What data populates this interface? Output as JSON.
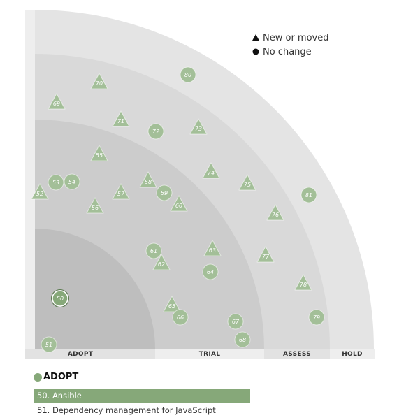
{
  "legend": {
    "new_label": "New or moved",
    "nochange_label": "No change"
  },
  "rings": [
    "ADOPT",
    "TRIAL",
    "ASSESS",
    "HOLD"
  ],
  "colors": {
    "accent": "#86a879",
    "blip_fill": "#a3bf98",
    "ring_fills": [
      "#bebebe",
      "#cccccc",
      "#d9d9d9",
      "#e4e4e4"
    ],
    "label_bar": "#eeeeee"
  },
  "blips": [
    {
      "num": "50",
      "shape": "circle",
      "ring": "ADOPT",
      "selected": true
    },
    {
      "num": "51",
      "shape": "circle",
      "ring": "ADOPT"
    },
    {
      "num": "52",
      "shape": "triangle",
      "ring": "TRIAL"
    },
    {
      "num": "53",
      "shape": "circle",
      "ring": "TRIAL"
    },
    {
      "num": "54",
      "shape": "circle",
      "ring": "TRIAL"
    },
    {
      "num": "55",
      "shape": "triangle",
      "ring": "TRIAL"
    },
    {
      "num": "56",
      "shape": "triangle",
      "ring": "TRIAL"
    },
    {
      "num": "57",
      "shape": "triangle",
      "ring": "TRIAL"
    },
    {
      "num": "58",
      "shape": "triangle",
      "ring": "TRIAL"
    },
    {
      "num": "59",
      "shape": "circle",
      "ring": "TRIAL"
    },
    {
      "num": "60",
      "shape": "triangle",
      "ring": "TRIAL"
    },
    {
      "num": "61",
      "shape": "circle",
      "ring": "TRIAL"
    },
    {
      "num": "62",
      "shape": "triangle",
      "ring": "TRIAL"
    },
    {
      "num": "63",
      "shape": "triangle",
      "ring": "TRIAL"
    },
    {
      "num": "64",
      "shape": "circle",
      "ring": "TRIAL"
    },
    {
      "num": "65",
      "shape": "triangle",
      "ring": "TRIAL"
    },
    {
      "num": "66",
      "shape": "circle",
      "ring": "TRIAL"
    },
    {
      "num": "67",
      "shape": "circle",
      "ring": "TRIAL"
    },
    {
      "num": "68",
      "shape": "circle",
      "ring": "TRIAL"
    },
    {
      "num": "69",
      "shape": "triangle",
      "ring": "ASSESS"
    },
    {
      "num": "70",
      "shape": "triangle",
      "ring": "ASSESS"
    },
    {
      "num": "71",
      "shape": "triangle",
      "ring": "ASSESS"
    },
    {
      "num": "72",
      "shape": "circle",
      "ring": "ASSESS"
    },
    {
      "num": "73",
      "shape": "triangle",
      "ring": "ASSESS"
    },
    {
      "num": "74",
      "shape": "triangle",
      "ring": "ASSESS"
    },
    {
      "num": "75",
      "shape": "triangle",
      "ring": "ASSESS"
    },
    {
      "num": "76",
      "shape": "triangle",
      "ring": "ASSESS"
    },
    {
      "num": "77",
      "shape": "triangle",
      "ring": "ASSESS"
    },
    {
      "num": "78",
      "shape": "triangle",
      "ring": "ASSESS"
    },
    {
      "num": "79",
      "shape": "circle",
      "ring": "ASSESS"
    },
    {
      "num": "80",
      "shape": "circle",
      "ring": "HOLD"
    },
    {
      "num": "81",
      "shape": "circle",
      "ring": "HOLD"
    }
  ],
  "quadrant": {
    "title": "ADOPT",
    "items": [
      {
        "label": "50. Ansible",
        "selected": true
      },
      {
        "label": "51. Dependency management for JavaScript",
        "selected": false
      }
    ]
  }
}
